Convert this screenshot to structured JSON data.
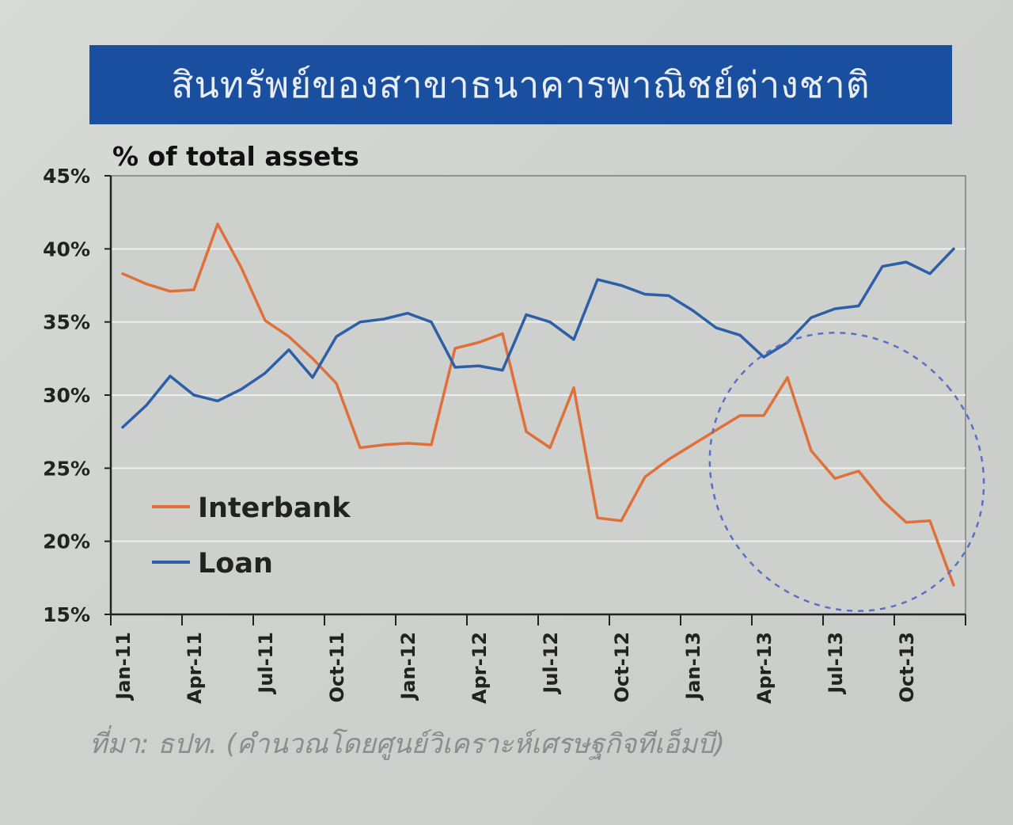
{
  "title": "สินทรัพย์ของสาขาธนาคารพาณิชย์ต่างชาติ",
  "source_note": "ที่มา: ธปท. (คำนวณโดยศูนย์วิเคราะห์เศรษฐกิจทีเอ็มบี)",
  "colors": {
    "title_bg": "#1a4fa0",
    "interbank": "#e0703a",
    "loan": "#2d5fa8",
    "highlight": "#5a6fc8"
  },
  "chart_data": {
    "type": "line",
    "ylabel": "% of total assets",
    "ylim": [
      15,
      45
    ],
    "y_ticks": [
      "15%",
      "20%",
      "25%",
      "30%",
      "35%",
      "40%",
      "45%"
    ],
    "grid": true,
    "legend_position": "bottom-left",
    "x_tick_labels": [
      "Jan-11",
      "Apr-11",
      "Jul-11",
      "Oct-11",
      "Jan-12",
      "Apr-12",
      "Jul-12",
      "Oct-12",
      "Jan-13",
      "Apr-13",
      "Jul-13",
      "Oct-13"
    ],
    "x": [
      "Jan-11",
      "Feb-11",
      "Mar-11",
      "Apr-11",
      "May-11",
      "Jun-11",
      "Jul-11",
      "Aug-11",
      "Sep-11",
      "Oct-11",
      "Nov-11",
      "Dec-11",
      "Jan-12",
      "Feb-12",
      "Mar-12",
      "Apr-12",
      "May-12",
      "Jun-12",
      "Jul-12",
      "Aug-12",
      "Sep-12",
      "Oct-12",
      "Nov-12",
      "Dec-12",
      "Jan-13",
      "Feb-13",
      "Mar-13",
      "Apr-13",
      "May-13",
      "Jun-13",
      "Jul-13",
      "Aug-13",
      "Sep-13",
      "Oct-13",
      "Nov-13",
      "Dec-13"
    ],
    "series": [
      {
        "name": "Interbank",
        "values": [
          38.3,
          37.6,
          37.1,
          37.2,
          41.7,
          38.7,
          35.1,
          34.0,
          32.5,
          30.8,
          26.4,
          26.6,
          26.7,
          26.6,
          33.2,
          33.6,
          34.2,
          27.5,
          26.4,
          30.5,
          21.6,
          21.4,
          24.4,
          25.6,
          26.6,
          27.6,
          28.6,
          28.6,
          31.2,
          26.2,
          24.3,
          24.8,
          22.8,
          21.3,
          21.4,
          17.0
        ]
      },
      {
        "name": "Loan",
        "values": [
          27.8,
          29.3,
          31.3,
          30.0,
          29.6,
          30.4,
          31.5,
          33.1,
          31.2,
          34.0,
          35.0,
          35.2,
          35.6,
          35.0,
          31.9,
          32.0,
          31.7,
          35.5,
          35.0,
          33.8,
          37.9,
          37.5,
          36.9,
          36.8,
          35.8,
          34.6,
          34.1,
          32.6,
          33.6,
          35.3,
          35.9,
          36.1,
          38.8,
          39.1,
          38.3,
          40.0
        ]
      }
    ],
    "highlight": {
      "shape": "ellipse",
      "style": "dashed",
      "x_from": "Mar-13",
      "x_to": "Dec-13",
      "y_from": 16,
      "y_to": 33.5
    }
  }
}
